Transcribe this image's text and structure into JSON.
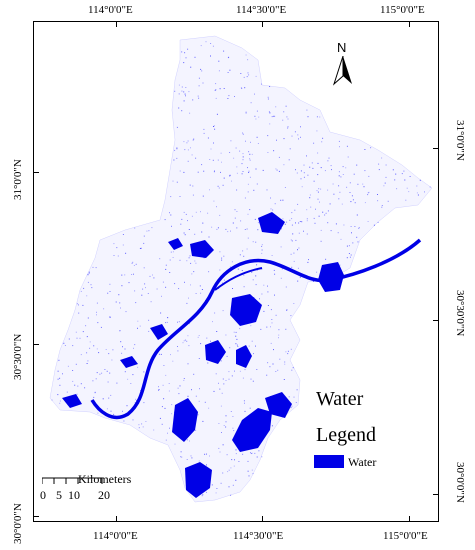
{
  "map": {
    "top_labels": [
      "114°0'0\"E",
      "114°30'0\"E",
      "115°0'0\"E"
    ],
    "bottom_labels": [
      "114°0'0\"E",
      "114°30'0\"E",
      "115°0'0\"E"
    ],
    "left_labels": [
      "31°0'0\"N",
      "30°30'0\"N",
      "30°0'0\"N"
    ],
    "right_labels": [
      "31°0'0\"N",
      "30°30'0\"N",
      "30°0'0\"N"
    ],
    "north_arrow": "N",
    "scale_bar": {
      "unit": "Kilometers",
      "ticks": [
        "0",
        "5",
        "10",
        "20"
      ]
    },
    "legend": {
      "title_line1": "Water",
      "title_line2": "Legend",
      "item_label": "Water"
    },
    "colors": {
      "water": "#0000e6",
      "scatter": "#3a3aff",
      "frame": "#000000"
    }
  }
}
